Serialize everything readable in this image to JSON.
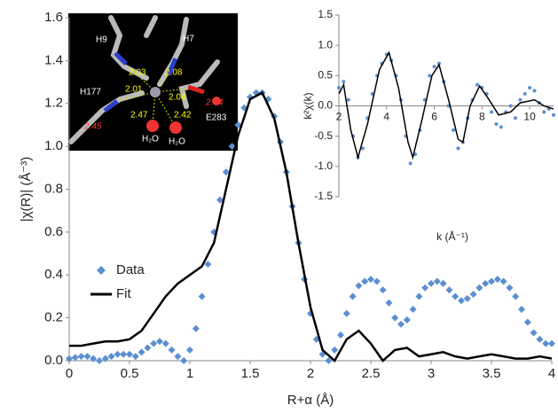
{
  "chart_data": [
    {
      "type": "scatter-line",
      "xlabel": "R+α (Å)",
      "ylabel": "|χ(R)| (Å⁻³)",
      "xlim": [
        0,
        4
      ],
      "xticks": [
        0,
        0.5,
        1,
        1.5,
        2,
        2.5,
        3,
        3.5,
        4
      ],
      "ylim": [
        0,
        1.6
      ],
      "yticks": [
        {
          "value": 0,
          "label": "0.0"
        },
        0.2,
        0.4,
        0.6,
        0.8,
        {
          "value": 1,
          "label": "1.0"
        },
        1.2,
        1.4,
        1.6
      ],
      "grid": false,
      "legend": "left",
      "series": [
        {
          "name": "Data",
          "color": "#5b8fd0",
          "style": "diamond",
          "x": [
            0,
            0.05,
            0.1,
            0.15,
            0.2,
            0.25,
            0.3,
            0.35,
            0.4,
            0.45,
            0.5,
            0.55,
            0.6,
            0.65,
            0.7,
            0.75,
            0.8,
            0.85,
            0.9,
            0.95,
            1,
            1.05,
            1.1,
            1.15,
            1.2,
            1.25,
            1.3,
            1.35,
            1.4,
            1.45,
            1.5,
            1.55,
            1.6,
            1.65,
            1.7,
            1.75,
            1.8,
            1.85,
            1.9,
            1.95,
            2,
            2.05,
            2.1,
            2.15,
            2.2,
            2.25,
            2.3,
            2.35,
            2.4,
            2.45,
            2.5,
            2.55,
            2.6,
            2.65,
            2.7,
            2.75,
            2.8,
            2.85,
            2.9,
            2.95,
            3,
            3.05,
            3.1,
            3.15,
            3.2,
            3.25,
            3.3,
            3.35,
            3.4,
            3.45,
            3.5,
            3.55,
            3.6,
            3.65,
            3.7,
            3.75,
            3.8,
            3.85,
            3.9,
            3.95,
            4
          ],
          "values": [
            0.01,
            0.015,
            0.02,
            0.02,
            0.01,
            0,
            0.01,
            0.02,
            0.03,
            0.03,
            0.03,
            0.02,
            0.04,
            0.06,
            0.08,
            0.09,
            0.08,
            0.05,
            0.02,
            0,
            0.05,
            0.15,
            0.3,
            0.45,
            0.6,
            0.75,
            0.88,
            1,
            1.1,
            1.18,
            1.23,
            1.25,
            1.25,
            1.22,
            1.14,
            1.02,
            0.88,
            0.72,
            0.55,
            0.38,
            0.22,
            0.1,
            0.03,
            0,
            0.05,
            0.12,
            0.22,
            0.3,
            0.35,
            0.37,
            0.38,
            0.37,
            0.33,
            0.27,
            0.2,
            0.17,
            0.19,
            0.24,
            0.3,
            0.34,
            0.36,
            0.37,
            0.36,
            0.33,
            0.3,
            0.28,
            0.29,
            0.31,
            0.34,
            0.36,
            0.37,
            0.38,
            0.37,
            0.34,
            0.3,
            0.24,
            0.18,
            0.13,
            0.1,
            0.08,
            0.08
          ]
        },
        {
          "name": "Fit",
          "color": "#000000",
          "style": "line",
          "x": [
            0,
            0.1,
            0.2,
            0.3,
            0.4,
            0.5,
            0.6,
            0.7,
            0.8,
            0.9,
            1,
            1.1,
            1.2,
            1.3,
            1.4,
            1.5,
            1.6,
            1.7,
            1.8,
            1.9,
            2,
            2.1,
            2.2,
            2.3,
            2.4,
            2.5,
            2.6,
            2.7,
            2.8,
            2.9,
            3,
            3.1,
            3.2,
            3.3,
            3.4,
            3.5,
            3.6,
            3.7,
            3.8,
            3.9,
            4
          ],
          "values": [
            0.07,
            0.07,
            0.08,
            0.09,
            0.09,
            0.1,
            0.14,
            0.22,
            0.3,
            0.36,
            0.4,
            0.44,
            0.55,
            0.8,
            1.05,
            1.22,
            1.25,
            1.13,
            0.88,
            0.55,
            0.25,
            0.05,
            0,
            0.1,
            0.14,
            0.08,
            0,
            0.05,
            0.06,
            0.02,
            0.03,
            0.04,
            0.02,
            0.01,
            0.02,
            0.03,
            0.02,
            0.01,
            0.01,
            0.02,
            0.01
          ]
        }
      ]
    },
    {
      "type": "scatter-line",
      "xlabel": "k (Å⁻¹)",
      "ylabel": "k²χ(k)",
      "xlim": [
        2,
        11
      ],
      "xticks": [
        2,
        4,
        6,
        8,
        10
      ],
      "ylim": [
        -1.5,
        1.5
      ],
      "yticks": [
        -1.5,
        {
          "value": -1,
          "label": "-1.0"
        },
        -0.5,
        {
          "value": 0,
          "label": "0.0"
        },
        0.5,
        {
          "value": 1,
          "label": "1.0"
        },
        1.5
      ],
      "grid": false,
      "series": [
        {
          "color": "#5b8fd0",
          "style": "dot",
          "x": [
            2,
            2.2,
            2.4,
            2.6,
            2.8,
            3,
            3.2,
            3.4,
            3.6,
            3.8,
            4,
            4.2,
            4.4,
            4.6,
            4.8,
            5,
            5.2,
            5.4,
            5.6,
            5.8,
            6,
            6.2,
            6.4,
            6.6,
            6.8,
            7,
            7.2,
            7.4,
            7.6,
            7.8,
            8,
            8.2,
            8.4,
            8.6,
            8.8,
            9,
            9.2,
            9.4,
            9.6,
            9.8,
            10,
            10.2,
            10.4,
            10.6,
            10.8,
            11
          ],
          "values": [
            0.3,
            0.4,
            0.1,
            -0.5,
            -0.85,
            -0.7,
            -0.2,
            0.2,
            0.5,
            0.7,
            0.85,
            0.75,
            0.5,
            0.1,
            -0.5,
            -0.95,
            -0.8,
            -0.4,
            0.1,
            0.5,
            0.65,
            0.7,
            0.4,
            0,
            -0.4,
            -0.7,
            -0.6,
            -0.2,
            0.1,
            0.35,
            0.3,
            0.2,
            -0.1,
            -0.3,
            -0.35,
            -0.1,
            0,
            -0.2,
            0.1,
            0.2,
            0.3,
            0.25,
            0.05,
            -0.1,
            -0.05,
            -0.15
          ]
        },
        {
          "color": "#000000",
          "style": "line",
          "x": [
            2,
            2.2,
            2.5,
            2.8,
            3.2,
            3.7,
            4.1,
            4.5,
            4.9,
            5.1,
            5.5,
            5.9,
            6.2,
            6.6,
            7,
            7.2,
            7.5,
            7.9,
            8.3,
            8.7,
            9.2,
            9.6,
            10.2,
            10.6,
            11
          ],
          "values": [
            0.2,
            0.35,
            -0.4,
            -0.85,
            -0.3,
            0.6,
            0.88,
            0.3,
            -0.6,
            -0.85,
            -0.2,
            0.5,
            0.68,
            0.1,
            -0.55,
            -0.6,
            0,
            0.33,
            0.1,
            -0.15,
            -0.1,
            0.05,
            0.1,
            0,
            -0.05
          ]
        }
      ]
    }
  ],
  "structure_image": {
    "residues": [
      "H9",
      "H7",
      "H177",
      "E283"
    ],
    "distances": [
      "2.03",
      "2.08",
      "2.01",
      "2.04",
      "2.47",
      "2.42"
    ],
    "highlighted_distances": [
      "2.45",
      "2.44"
    ],
    "waters": [
      "H₂O",
      "H₂O"
    ]
  }
}
